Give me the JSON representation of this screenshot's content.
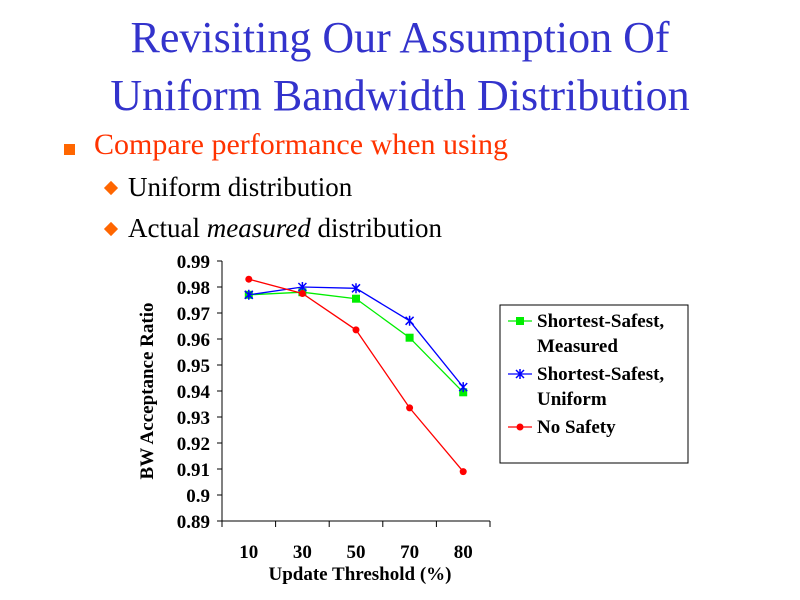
{
  "slide": {
    "title_line1": "Revisiting Our Assumption Of",
    "title_line2": "Uniform Bandwidth Distribution",
    "bullet": "Compare performance when using",
    "sub1": "Uniform distribution",
    "sub2_pre": "Actual ",
    "sub2_em": "measured",
    "sub2_post": " distribution"
  },
  "chart_data": {
    "type": "line",
    "xlabel": "Update Threshold (%)",
    "ylabel": "BW Acceptance Ratio",
    "categories": [
      "10",
      "30",
      "50",
      "70",
      "80"
    ],
    "ylim": [
      0.89,
      0.99
    ],
    "yticks": [
      "0.99",
      "0.98",
      "0.97",
      "0.96",
      "0.95",
      "0.94",
      "0.93",
      "0.92",
      "0.91",
      "0.9",
      "0.89"
    ],
    "legend_position": "right",
    "series": [
      {
        "name": "Shortest-Safest, Measured",
        "label_lines": [
          "Shortest-Safest,",
          "Measured"
        ],
        "color": "#00ee00",
        "marker": "square",
        "values": [
          0.977,
          0.978,
          0.9755,
          0.9605,
          0.9395
        ]
      },
      {
        "name": "Shortest-Safest, Uniform",
        "label_lines": [
          "Shortest-Safest,",
          "Uniform"
        ],
        "color": "#0000ff",
        "marker": "star",
        "values": [
          0.977,
          0.98,
          0.9795,
          0.967,
          0.9415
        ]
      },
      {
        "name": "No Safety",
        "label_lines": [
          "No Safety"
        ],
        "color": "#ff0000",
        "marker": "circle",
        "values": [
          0.983,
          0.9775,
          0.9635,
          0.9335,
          0.909
        ]
      }
    ]
  }
}
